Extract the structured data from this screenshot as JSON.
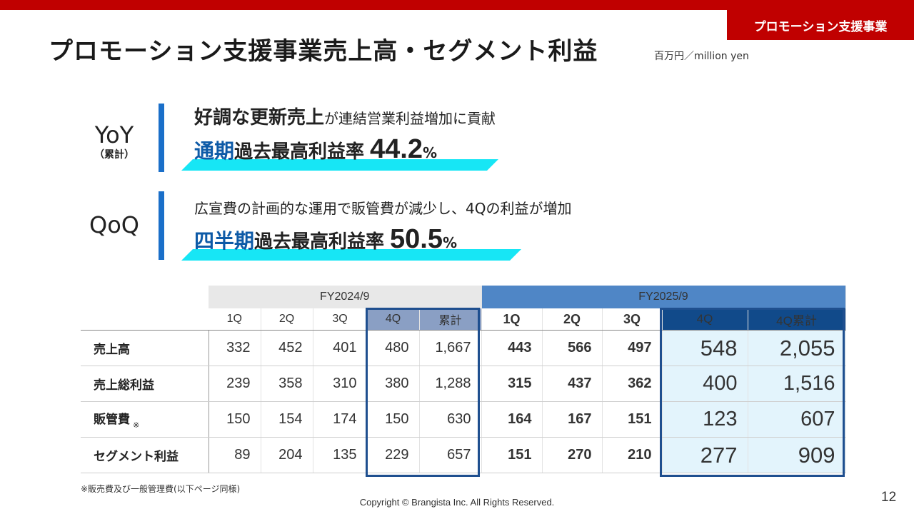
{
  "section_tag": "プロモーション支援事業",
  "title": "プロモーション支援事業売上高・セグメント利益",
  "unit": "百万円／million yen",
  "yoy": {
    "label": "YoY",
    "sublabel": "（累計）",
    "line1_emphasis": "好調な更新売上",
    "line1_rest": "が連結営業利益増加に貢献",
    "line2_blue": "通期",
    "line2_text": "過去最高利益率",
    "line2_value": "44.2",
    "line2_unit": "%"
  },
  "qoq": {
    "label": "QoQ",
    "line1": "広宣費の計画的な運用で販管費が減少し、4Qの利益が増加",
    "line2_blue": "四半期",
    "line2_text": "過去最高利益率",
    "line2_value": "50.5",
    "line2_unit": "%"
  },
  "table": {
    "fy2024": "FY2024/9",
    "fy2025": "FY2025/9",
    "cols2024": [
      "1Q",
      "2Q",
      "3Q",
      "4Q",
      "累計"
    ],
    "cols2025": [
      "1Q",
      "2Q",
      "3Q",
      "4Q",
      "4Q累計"
    ],
    "rows": [
      {
        "label": "売上高",
        "mark": "",
        "fy2024": [
          "332",
          "452",
          "401",
          "480",
          "1,667"
        ],
        "fy2025": [
          "443",
          "566",
          "497",
          "548",
          "2,055"
        ]
      },
      {
        "label": "売上総利益",
        "mark": "",
        "fy2024": [
          "239",
          "358",
          "310",
          "380",
          "1,288"
        ],
        "fy2025": [
          "315",
          "437",
          "362",
          "400",
          "1,516"
        ]
      },
      {
        "label": "販管費",
        "mark": "※",
        "fy2024": [
          "150",
          "154",
          "174",
          "150",
          "630"
        ],
        "fy2025": [
          "164",
          "167",
          "151",
          "123",
          "607"
        ]
      },
      {
        "label": "セグメント利益",
        "mark": "",
        "fy2024": [
          "89",
          "204",
          "135",
          "229",
          "657"
        ],
        "fy2025": [
          "151",
          "270",
          "210",
          "277",
          "909"
        ]
      }
    ]
  },
  "note": "※販売費及び一般管理費(以下ページ同様)",
  "copyright": "Copyright © Brangista Inc. All Rights Reserved.",
  "page_number": "12"
}
